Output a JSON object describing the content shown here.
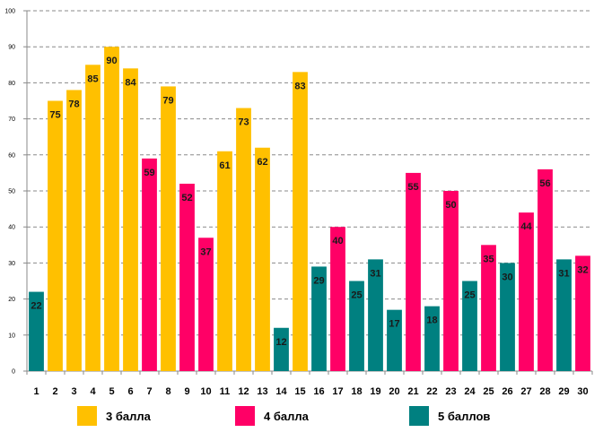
{
  "chart_data": {
    "type": "bar",
    "title": "",
    "xlabel": "",
    "ylabel": "",
    "ylim": [
      0,
      100
    ],
    "yticks": [
      0,
      10,
      20,
      30,
      40,
      50,
      60,
      70,
      80,
      90,
      100
    ],
    "grid": true,
    "categories": [
      "1",
      "2",
      "3",
      "4",
      "5",
      "6",
      "7",
      "8",
      "9",
      "10",
      "11",
      "12",
      "13",
      "14",
      "15",
      "16",
      "17",
      "18",
      "19",
      "20",
      "21",
      "22",
      "23",
      "24",
      "25",
      "26",
      "27",
      "28",
      "29",
      "30"
    ],
    "values": [
      22,
      75,
      78,
      85,
      90,
      84,
      59,
      79,
      52,
      37,
      61,
      73,
      62,
      12,
      83,
      29,
      40,
      25,
      31,
      17,
      55,
      18,
      50,
      25,
      35,
      30,
      44,
      56,
      31,
      32
    ],
    "groups": [
      "5",
      "3",
      "3",
      "3",
      "3",
      "3",
      "4",
      "3",
      "4",
      "4",
      "3",
      "3",
      "3",
      "5",
      "3",
      "5",
      "4",
      "5",
      "5",
      "5",
      "4",
      "5",
      "4",
      "5",
      "4",
      "5",
      "4",
      "4",
      "5",
      "4"
    ],
    "series": [
      {
        "key": "3",
        "name": "3 балла",
        "color": "#FFC000"
      },
      {
        "key": "4",
        "name": "4 балла",
        "color": "#FF0066"
      },
      {
        "key": "5",
        "name": "5 баллов",
        "color": "#008080"
      }
    ],
    "legend_position": "bottom"
  }
}
